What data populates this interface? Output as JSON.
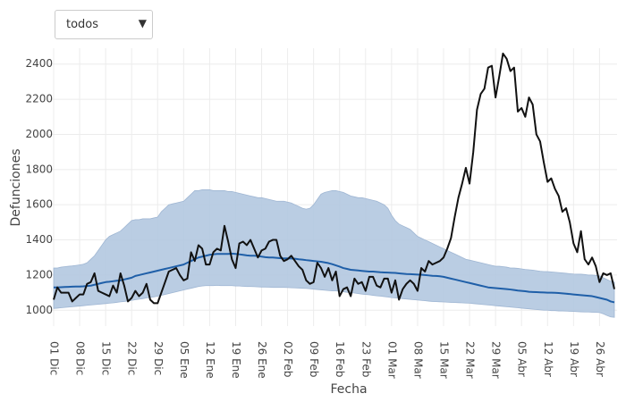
{
  "dropdown": "todos",
  "chart_data": {
    "type": "line",
    "x_label": "Fecha",
    "y_label": "Defunciones",
    "categories": [
      "01 Dic",
      null,
      null,
      null,
      null,
      null,
      null,
      "08 Dic",
      null,
      null,
      null,
      null,
      null,
      null,
      "15 Dic",
      null,
      null,
      null,
      null,
      null,
      null,
      "22 Dic",
      null,
      null,
      null,
      null,
      null,
      null,
      "29 Dic",
      null,
      null,
      null,
      null,
      null,
      null,
      "05 Ene",
      null,
      null,
      null,
      null,
      null,
      null,
      "12 Ene",
      null,
      null,
      null,
      null,
      null,
      null,
      "19 Ene",
      null,
      null,
      null,
      null,
      null,
      null,
      "26 Ene",
      null,
      null,
      null,
      null,
      null,
      null,
      "02 Feb",
      null,
      null,
      null,
      null,
      null,
      null,
      "09 Feb",
      null,
      null,
      null,
      null,
      null,
      null,
      "16 Feb",
      null,
      null,
      null,
      null,
      null,
      null,
      "23 Feb",
      null,
      null,
      null,
      null,
      null,
      null,
      "01 Mar",
      null,
      null,
      null,
      null,
      null,
      null,
      "08 Mar",
      null,
      null,
      null,
      null,
      null,
      null,
      "15 Mar",
      null,
      null,
      null,
      null,
      null,
      null,
      "22 Mar",
      null,
      null,
      null,
      null,
      null,
      null,
      "29 Mar",
      null,
      null,
      null,
      null,
      null,
      null,
      "05 Abr",
      null,
      null,
      null,
      null,
      null,
      null,
      "12 Abr",
      null,
      null,
      null,
      null,
      null,
      null,
      "19 Abr",
      null,
      null,
      null,
      null,
      null,
      null,
      "26 Abr",
      null,
      null,
      null,
      null
    ],
    "band": {
      "color": "#b3c8e0",
      "upper": [
        1240,
        1240,
        1245,
        1248,
        1250,
        1252,
        1255,
        1258,
        1262,
        1270,
        1290,
        1310,
        1340,
        1370,
        1400,
        1420,
        1430,
        1440,
        1450,
        1470,
        1490,
        1510,
        1515,
        1515,
        1520,
        1520,
        1520,
        1525,
        1530,
        1560,
        1580,
        1600,
        1605,
        1610,
        1615,
        1620,
        1640,
        1660,
        1680,
        1680,
        1685,
        1685,
        1685,
        1680,
        1680,
        1680,
        1680,
        1675,
        1675,
        1670,
        1665,
        1660,
        1655,
        1650,
        1645,
        1640,
        1640,
        1635,
        1630,
        1625,
        1620,
        1620,
        1620,
        1615,
        1610,
        1600,
        1590,
        1580,
        1575,
        1580,
        1600,
        1630,
        1660,
        1670,
        1675,
        1680,
        1680,
        1675,
        1670,
        1660,
        1650,
        1645,
        1640,
        1640,
        1635,
        1630,
        1625,
        1620,
        1610,
        1600,
        1580,
        1540,
        1510,
        1490,
        1480,
        1470,
        1460,
        1440,
        1420,
        1410,
        1400,
        1390,
        1380,
        1370,
        1360,
        1350,
        1340,
        1330,
        1320,
        1310,
        1300,
        1290,
        1285,
        1280,
        1275,
        1270,
        1265,
        1260,
        1255,
        1250,
        1250,
        1248,
        1245,
        1240,
        1240,
        1238,
        1235,
        1232,
        1230,
        1228,
        1225,
        1222,
        1220,
        1220,
        1218,
        1216,
        1214,
        1212,
        1210,
        1208,
        1206,
        1205,
        1205,
        1203,
        1200,
        1200,
        1198,
        1195,
        1185,
        1175,
        1165,
        1160
      ],
      "lower": [
        1010,
        1012,
        1014,
        1016,
        1018,
        1020,
        1022,
        1024,
        1026,
        1028,
        1030,
        1032,
        1034,
        1036,
        1038,
        1040,
        1042,
        1045,
        1048,
        1050,
        1053,
        1056,
        1060,
        1063,
        1066,
        1070,
        1073,
        1076,
        1080,
        1085,
        1090,
        1095,
        1100,
        1105,
        1110,
        1115,
        1120,
        1125,
        1130,
        1135,
        1138,
        1140,
        1140,
        1140,
        1142,
        1140,
        1140,
        1140,
        1140,
        1138,
        1138,
        1136,
        1135,
        1135,
        1134,
        1133,
        1132,
        1132,
        1131,
        1130,
        1130,
        1130,
        1130,
        1129,
        1128,
        1127,
        1126,
        1125,
        1124,
        1122,
        1120,
        1118,
        1116,
        1114,
        1112,
        1110,
        1110,
        1108,
        1105,
        1102,
        1100,
        1098,
        1095,
        1092,
        1090,
        1088,
        1085,
        1082,
        1080,
        1078,
        1075,
        1072,
        1070,
        1068,
        1066,
        1064,
        1062,
        1060,
        1058,
        1056,
        1054,
        1052,
        1050,
        1049,
        1048,
        1047,
        1046,
        1045,
        1044,
        1043,
        1042,
        1041,
        1040,
        1038,
        1036,
        1034,
        1032,
        1030,
        1028,
        1026,
        1024,
        1022,
        1020,
        1018,
        1016,
        1014,
        1012,
        1010,
        1008,
        1006,
        1004,
        1002,
        1000,
        1000,
        998,
        998,
        996,
        996,
        995,
        994,
        993,
        992,
        991,
        990,
        990,
        989,
        988,
        987,
        980,
        970,
        962,
        960
      ]
    },
    "series": [
      {
        "color": "#1f5fa8",
        "values": [
          1130,
          1130,
          1131,
          1132,
          1133,
          1134,
          1135,
          1135,
          1136,
          1138,
          1140,
          1145,
          1150,
          1155,
          1160,
          1162,
          1165,
          1168,
          1170,
          1175,
          1180,
          1185,
          1195,
          1200,
          1205,
          1210,
          1215,
          1220,
          1225,
          1230,
          1235,
          1240,
          1245,
          1250,
          1255,
          1260,
          1270,
          1280,
          1290,
          1300,
          1305,
          1310,
          1315,
          1318,
          1320,
          1320,
          1320,
          1320,
          1322,
          1320,
          1318,
          1315,
          1312,
          1310,
          1310,
          1308,
          1305,
          1302,
          1300,
          1300,
          1298,
          1296,
          1295,
          1295,
          1294,
          1293,
          1290,
          1288,
          1285,
          1283,
          1280,
          1278,
          1276,
          1272,
          1268,
          1262,
          1255,
          1248,
          1240,
          1235,
          1230,
          1228,
          1226,
          1224,
          1222,
          1220,
          1220,
          1218,
          1216,
          1215,
          1214,
          1213,
          1212,
          1210,
          1208,
          1206,
          1205,
          1204,
          1203,
          1202,
          1200,
          1198,
          1196,
          1195,
          1193,
          1190,
          1185,
          1180,
          1175,
          1170,
          1165,
          1160,
          1155,
          1150,
          1145,
          1140,
          1135,
          1130,
          1128,
          1126,
          1124,
          1122,
          1120,
          1118,
          1115,
          1112,
          1110,
          1108,
          1105,
          1104,
          1103,
          1102,
          1101,
          1100,
          1100,
          1099,
          1098,
          1096,
          1094,
          1092,
          1090,
          1088,
          1086,
          1084,
          1082,
          1080,
          1075,
          1070,
          1065,
          1060,
          1050,
          1045
        ]
      },
      {
        "color": "#111111",
        "values": [
          1060,
          1130,
          1100,
          1100,
          1100,
          1050,
          1070,
          1090,
          1090,
          1150,
          1160,
          1210,
          1110,
          1100,
          1090,
          1080,
          1140,
          1100,
          1210,
          1140,
          1050,
          1070,
          1110,
          1080,
          1100,
          1150,
          1060,
          1040,
          1040,
          1100,
          1160,
          1220,
          1230,
          1240,
          1200,
          1170,
          1180,
          1330,
          1280,
          1370,
          1350,
          1260,
          1260,
          1330,
          1350,
          1340,
          1480,
          1390,
          1290,
          1240,
          1380,
          1390,
          1370,
          1400,
          1350,
          1300,
          1340,
          1350,
          1390,
          1400,
          1400,
          1310,
          1280,
          1290,
          1310,
          1280,
          1250,
          1230,
          1170,
          1150,
          1160,
          1270,
          1240,
          1190,
          1240,
          1170,
          1220,
          1080,
          1120,
          1130,
          1080,
          1180,
          1150,
          1160,
          1110,
          1190,
          1190,
          1140,
          1130,
          1180,
          1180,
          1100,
          1170,
          1060,
          1120,
          1150,
          1170,
          1150,
          1110,
          1240,
          1220,
          1280,
          1260,
          1270,
          1280,
          1300,
          1350,
          1410,
          1530,
          1640,
          1720,
          1810,
          1720,
          1900,
          2140,
          2230,
          2260,
          2380,
          2390,
          2210,
          2330,
          2460,
          2430,
          2360,
          2380,
          2130,
          2150,
          2100,
          2210,
          2170,
          2000,
          1960,
          1840,
          1730,
          1750,
          1690,
          1650,
          1560,
          1580,
          1500,
          1380,
          1330,
          1450,
          1290,
          1260,
          1300,
          1250,
          1160,
          1210,
          1200,
          1210,
          1120
        ]
      }
    ],
    "ylim": [
      910,
      2490
    ],
    "yticks": [
      1000,
      1200,
      1400,
      1600,
      1800,
      2000,
      2200,
      2400
    ],
    "grid": true
  }
}
